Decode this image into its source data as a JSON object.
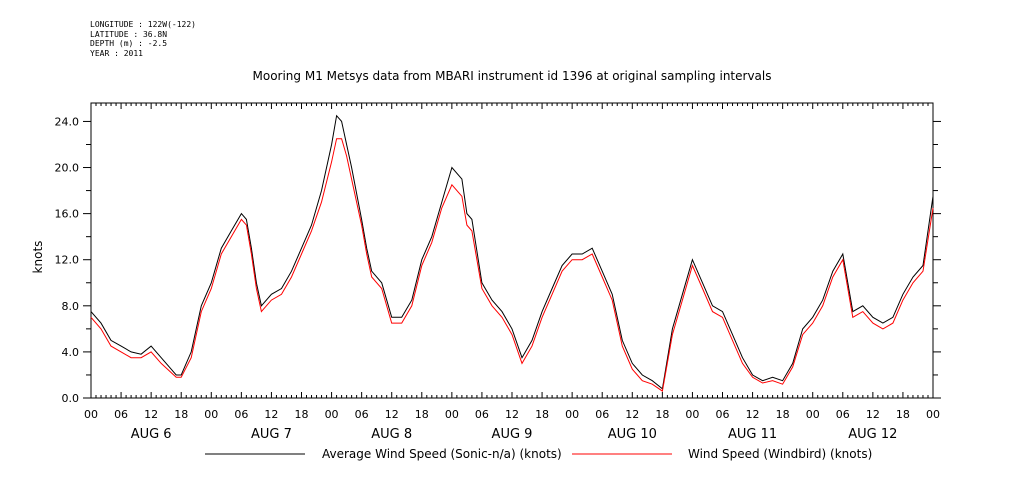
{
  "header": {
    "longitude": "LONGITUDE : 122W(-122)",
    "latitude": "LATITUDE : 36.8N",
    "depth": "DEPTH (m) : -2.5",
    "year": "YEAR : 2011"
  },
  "chart_data": {
    "type": "line",
    "title": "Mooring M1 Metsys data from MBARI instrument id 1396 at original sampling intervals",
    "ylabel": "knots",
    "ylim": [
      0,
      25.6
    ],
    "yticks": [
      0,
      4,
      8,
      12,
      16,
      20,
      24
    ],
    "ytick_labels": [
      "0.0",
      "4.0",
      "8.0",
      "12.0",
      "16.0",
      "20.0",
      "24.0"
    ],
    "xlim_hours": [
      0,
      168
    ],
    "xtick_labels": [
      "00",
      "06",
      "12",
      "18",
      "00",
      "06",
      "12",
      "18",
      "00",
      "06",
      "12",
      "18",
      "00",
      "06",
      "12",
      "18",
      "00",
      "06",
      "12",
      "18",
      "00",
      "06",
      "12",
      "18",
      "00",
      "06",
      "12",
      "18",
      "00"
    ],
    "day_labels": [
      "AUG 6",
      "AUG 7",
      "AUG 8",
      "AUG 9",
      "AUG 10",
      "AUG 11",
      "AUG 12"
    ],
    "grid": false,
    "legend": "bottom",
    "colors": {
      "sonic": "#000000",
      "windbird": "#ff0000"
    },
    "series": [
      {
        "name": "Average Wind Speed (Sonic-n/a) (knots)",
        "x": [
          0,
          2,
          4,
          6,
          8,
          10,
          12,
          14,
          16,
          17,
          18,
          20,
          22,
          24,
          26,
          28,
          30,
          31,
          32,
          33,
          34,
          36,
          38,
          40,
          42,
          44,
          46,
          48,
          49,
          50,
          51,
          52,
          54,
          55,
          56,
          58,
          60,
          62,
          64,
          66,
          68,
          70,
          72,
          74,
          75,
          76,
          78,
          80,
          82,
          84,
          86,
          88,
          90,
          92,
          94,
          96,
          98,
          100,
          102,
          104,
          106,
          108,
          110,
          112,
          114,
          116,
          118,
          120,
          122,
          124,
          126,
          128,
          130,
          132,
          134,
          136,
          138,
          140,
          142,
          144,
          146,
          148,
          150,
          152,
          154,
          156,
          158,
          160,
          162,
          164,
          166,
          168
        ],
        "y": [
          7.5,
          6.5,
          5.0,
          4.5,
          4.0,
          3.8,
          4.5,
          3.5,
          2.5,
          2.0,
          2.0,
          4.0,
          8.0,
          10.0,
          13.0,
          14.5,
          16.0,
          15.5,
          13.0,
          10.0,
          8.0,
          9.0,
          9.5,
          11.0,
          13.0,
          15.0,
          18.0,
          22.0,
          24.5,
          24.0,
          22.0,
          20.0,
          15.5,
          13.0,
          11.0,
          10.0,
          7.0,
          7.0,
          8.5,
          12.0,
          14.0,
          17.0,
          20.0,
          19.0,
          16.0,
          15.5,
          10.0,
          8.5,
          7.5,
          6.0,
          3.5,
          5.0,
          7.5,
          9.5,
          11.5,
          12.5,
          12.5,
          13.0,
          11.0,
          9.0,
          5.0,
          3.0,
          2.0,
          1.5,
          0.8,
          6.0,
          9.0,
          12.0,
          10.0,
          8.0,
          7.5,
          5.5,
          3.5,
          2.0,
          1.5,
          1.8,
          1.5,
          3.0,
          6.0,
          7.0,
          8.5,
          11.0,
          12.5,
          7.5,
          8.0,
          7.0,
          6.5,
          7.0,
          9.0,
          10.5,
          11.5,
          17.5
        ]
      },
      {
        "name": "Wind Speed (Windbird) (knots)",
        "x": [
          0,
          2,
          4,
          6,
          8,
          10,
          12,
          14,
          16,
          17,
          18,
          20,
          22,
          24,
          26,
          28,
          30,
          31,
          32,
          33,
          34,
          36,
          38,
          40,
          42,
          44,
          46,
          48,
          49,
          50,
          51,
          52,
          54,
          55,
          56,
          58,
          60,
          62,
          64,
          66,
          68,
          70,
          72,
          74,
          75,
          76,
          78,
          80,
          82,
          84,
          86,
          88,
          90,
          92,
          94,
          96,
          98,
          100,
          102,
          104,
          106,
          108,
          110,
          112,
          114,
          116,
          118,
          120,
          122,
          124,
          126,
          128,
          130,
          132,
          134,
          136,
          138,
          140,
          142,
          144,
          146,
          148,
          150,
          152,
          154,
          156,
          158,
          160,
          162,
          164,
          166,
          168
        ],
        "y": [
          7.0,
          6.0,
          4.5,
          4.0,
          3.5,
          3.5,
          4.0,
          3.0,
          2.2,
          1.8,
          1.8,
          3.5,
          7.5,
          9.5,
          12.5,
          14.0,
          15.5,
          15.0,
          12.5,
          9.5,
          7.5,
          8.5,
          9.0,
          10.5,
          12.5,
          14.5,
          17.0,
          20.5,
          22.5,
          22.5,
          21.0,
          19.0,
          15.0,
          12.5,
          10.5,
          9.5,
          6.5,
          6.5,
          8.0,
          11.5,
          13.5,
          16.5,
          18.5,
          17.5,
          15.0,
          14.5,
          9.5,
          8.0,
          7.0,
          5.5,
          3.0,
          4.5,
          7.0,
          9.0,
          11.0,
          12.0,
          12.0,
          12.5,
          10.5,
          8.5,
          4.5,
          2.5,
          1.5,
          1.2,
          0.6,
          5.5,
          8.5,
          11.5,
          9.5,
          7.5,
          7.0,
          5.0,
          3.0,
          1.8,
          1.3,
          1.5,
          1.2,
          2.7,
          5.5,
          6.5,
          8.0,
          10.5,
          12.0,
          7.0,
          7.5,
          6.5,
          6.0,
          6.5,
          8.5,
          10.0,
          11.0,
          16.5
        ]
      }
    ]
  }
}
